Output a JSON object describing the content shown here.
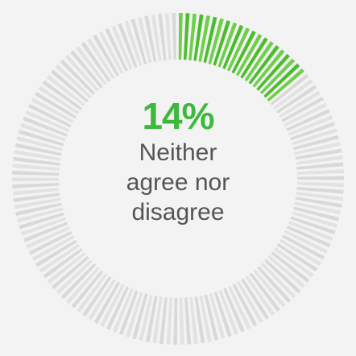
{
  "chart_data": {
    "type": "pie",
    "style": "donut",
    "value_percent": 14,
    "percent_label": "14%",
    "label_lines": [
      "Neither",
      "agree nor",
      "disagree"
    ],
    "colors": {
      "filled": "#6fcf4a",
      "filled_dark": "#4bbd2c",
      "track": "#e2e2e2",
      "track_dark": "#d9d9d9",
      "percent_text": "#3cb93c",
      "label_text": "#555555",
      "background": "#f3f3f3"
    }
  }
}
